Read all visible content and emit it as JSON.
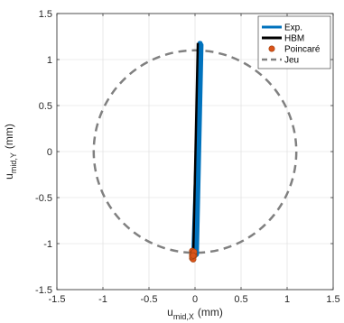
{
  "chart_data": {
    "type": "line",
    "xlabel": {
      "base": "u",
      "sub": "mid,X",
      "unit": "(mm)"
    },
    "ylabel": {
      "base": "u",
      "sub": "mid,Y",
      "unit": "(mm)"
    },
    "xlim": [
      -1.5,
      1.5
    ],
    "ylim": [
      -1.5,
      1.5
    ],
    "xticks": [
      -1.5,
      -1,
      -0.5,
      0,
      0.5,
      1,
      1.5
    ],
    "yticks": [
      -1.5,
      -1,
      -0.5,
      0,
      0.5,
      1,
      1.5
    ],
    "xtick_labels": [
      "-1.5",
      "-1",
      "-0.5",
      "0",
      "0.5",
      "1",
      "1.5"
    ],
    "ytick_labels": [
      "-1.5",
      "-1",
      "-0.5",
      "0",
      "0.5",
      "1",
      "1.5"
    ],
    "grid": true,
    "legend_position": "top-right",
    "series": [
      {
        "name": "Exp.",
        "kind": "line",
        "color": "#0072BD",
        "x": [
          -0.02,
          0.06,
          0.05,
          -0.01,
          0.07,
          0.02,
          -0.02,
          0.06
        ],
        "y": [
          -1.15,
          1.18,
          1.18,
          -1.13,
          1.16,
          -1.12,
          -1.15,
          1.17
        ]
      },
      {
        "name": "HBM",
        "kind": "line",
        "color": "#000000",
        "x": [
          -0.02,
          0.03,
          -0.02
        ],
        "y": [
          -1.15,
          1.18,
          -1.15
        ]
      },
      {
        "name": "Poincaré",
        "kind": "scatter",
        "color": "#D95319",
        "x": [
          -0.03,
          -0.02,
          -0.01,
          -0.02,
          -0.03,
          -0.01,
          -0.02,
          -0.03,
          -0.02,
          -0.01,
          -0.02,
          -0.03,
          -0.02
        ],
        "y": [
          -1.08,
          -1.1,
          -1.12,
          -1.14,
          -1.16,
          -1.13,
          -1.11,
          -1.12,
          -1.15,
          -1.09,
          -1.17,
          -1.14,
          -1.13
        ]
      },
      {
        "name": "Jeu",
        "kind": "circle",
        "color": "#808080",
        "center": [
          0,
          0
        ],
        "radius": 1.1
      }
    ]
  }
}
